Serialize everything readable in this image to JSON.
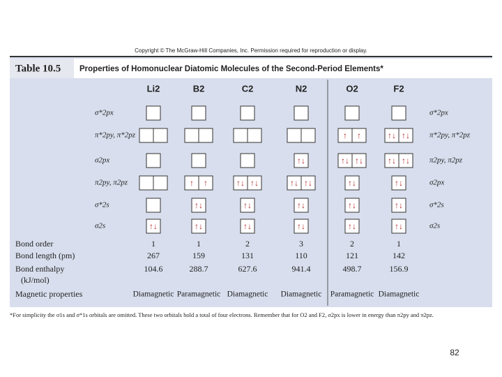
{
  "copyright": "Copyright © The McGraw-Hill Companies, Inc. Permission required for reproduction or display.",
  "table": {
    "number": "Table 10.5",
    "title": "Properties of Homonuclear Diatomic Molecules of the Second-Period Elements*",
    "columns": [
      "Li2",
      "B2",
      "C2",
      "N2",
      "O2",
      "F2"
    ],
    "orbitals": [
      {
        "left": "σ*2px",
        "right": "σ*2px",
        "cells": [
          [
            null
          ],
          [
            null
          ],
          [
            null
          ],
          [
            null
          ],
          [
            null
          ],
          [
            null
          ]
        ]
      },
      {
        "left": "π*2py, π*2pz",
        "right": "π*2py, π*2pz",
        "cells": [
          [
            null,
            null
          ],
          [
            null,
            null
          ],
          [
            null,
            null
          ],
          [
            null,
            null
          ],
          [
            "↑",
            "↑"
          ],
          [
            "↑↓",
            "↑↓"
          ]
        ]
      },
      {
        "left": "σ2px",
        "right": "π2py, π2pz",
        "cells": [
          [
            null
          ],
          [
            null
          ],
          [
            null
          ],
          [
            "↑↓"
          ],
          [
            "↑↓",
            "↑↓"
          ],
          [
            "↑↓",
            "↑↓"
          ]
        ]
      },
      {
        "left": "π2py, π2pz",
        "right": "σ2px",
        "cells": [
          [
            null,
            null
          ],
          [
            "↑",
            "↑"
          ],
          [
            "↑↓",
            "↑↓"
          ],
          [
            "↑↓",
            "↑↓"
          ],
          [
            "↑↓"
          ],
          [
            "↑↓"
          ]
        ]
      },
      {
        "left": "σ*2s",
        "right": "σ*2s",
        "cells": [
          [
            null
          ],
          [
            "↑↓"
          ],
          [
            "↑↓"
          ],
          [
            "↑↓"
          ],
          [
            "↑↓"
          ],
          [
            "↑↓"
          ]
        ]
      },
      {
        "left": "σ2s",
        "right": "σ2s",
        "cells": [
          [
            "↑↓"
          ],
          [
            "↑↓"
          ],
          [
            "↑↓"
          ],
          [
            "↑↓"
          ],
          [
            "↑↓"
          ],
          [
            "↑↓"
          ]
        ]
      }
    ],
    "properties": [
      {
        "label": [
          "Bond order"
        ],
        "values": [
          1,
          1,
          2,
          3,
          2,
          1
        ]
      },
      {
        "label": [
          "Bond length (pm)"
        ],
        "values": [
          267,
          159,
          131,
          110,
          121,
          142
        ]
      },
      {
        "label": [
          "Bond enthalpy",
          "(kJ/mol)"
        ],
        "values": [
          104.6,
          288.7,
          627.6,
          941.4,
          498.7,
          156.9
        ]
      },
      {
        "label": [
          "Magnetic properties"
        ],
        "values": [
          "Diamagnetic",
          "Paramagnetic",
          "Diamagnetic",
          "Diamagnetic",
          "Paramagnetic",
          "Diamagnetic"
        ]
      }
    ]
  },
  "footnote": "*For simplicity the σ1s and σ*1s orbitals are omitted. These two orbitals hold a total of four electrons. Remember that for O2 and F2, σ2px is lower in energy than π2py and π2pz.",
  "page_number": "82"
}
